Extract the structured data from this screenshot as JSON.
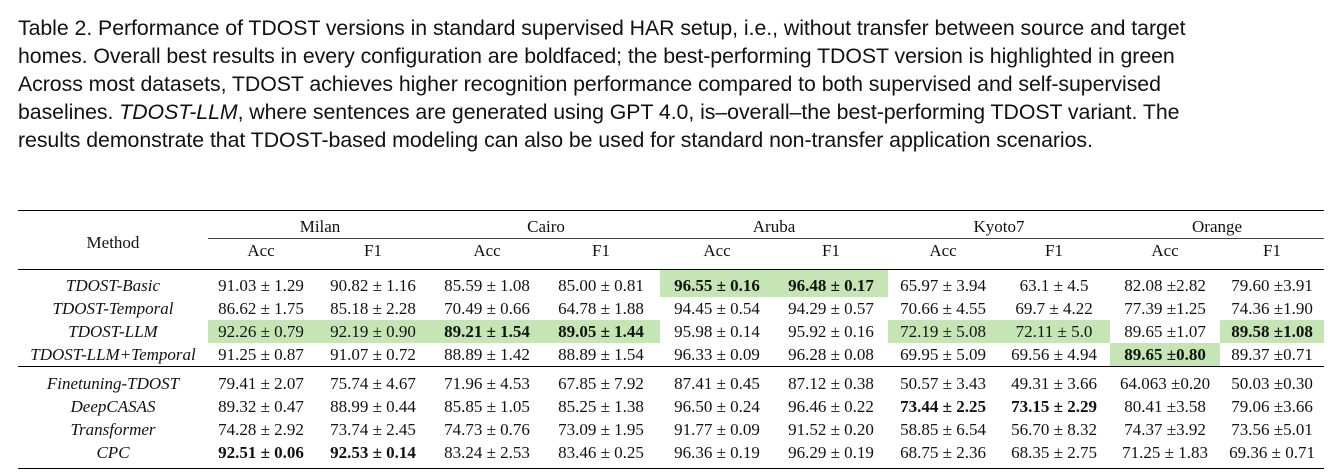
{
  "caption": {
    "line1": "Table 2.  Performance of TDOST versions in standard supervised HAR setup, i.e., without transfer between source and target",
    "line2": "homes. Overall best results in every configuration are boldfaced; the best-performing TDOST version is highlighted in green",
    "line3": "Across most datasets, TDOST achieves higher recognition performance compared to both supervised and self-supervised",
    "line4_pre": "baselines. ",
    "line4_em": "TDOST-LLM",
    "line4_post": ", where sentences are generated using GPT 4.0, is–overall–the best-performing TDOST variant. The",
    "line5": "results demonstrate that TDOST-based modeling can also be used for standard non-transfer application scenarios."
  },
  "colors": {
    "highlight": "#c6e5b4"
  },
  "table": {
    "method_header": "Method",
    "datasets": [
      "Milan",
      "Cairo",
      "Aruba",
      "Kyoto7",
      "Orange"
    ],
    "metrics": [
      "Acc",
      "F1"
    ],
    "rows": [
      {
        "method": "TDOST-Basic",
        "cells": [
          "91.03 ± 1.29",
          "90.82 ± 1.16",
          "85.59 ± 1.08",
          "85.00 ± 0.81",
          "96.55 ± 0.16",
          "96.48 ± 0.17",
          "65.97 ± 3.94",
          "63.1 ± 4.5",
          "82.08 ±2.82",
          "79.60 ±3.91"
        ]
      },
      {
        "method": "TDOST-Temporal",
        "cells": [
          "86.62 ± 1.75",
          "85.18 ± 2.28",
          "70.49 ± 0.66",
          "64.78 ± 1.88",
          "94.45 ± 0.54",
          "94.29 ± 0.57",
          "70.66 ± 4.55",
          "69.7 ± 4.22",
          "77.39 ±1.25",
          "74.36 ±1.90"
        ]
      },
      {
        "method": "TDOST-LLM",
        "cells": [
          "92.26 ± 0.79",
          "92.19 ± 0.90",
          "89.21 ± 1.54",
          "89.05 ± 1.44",
          "95.98 ± 0.14",
          "95.92 ± 0.16",
          "72.19 ± 5.08",
          "72.11 ± 5.0",
          "89.65 ±1.07",
          "89.58 ±1.08"
        ]
      },
      {
        "method": "TDOST-LLM+Temporal",
        "cells": [
          "91.25 ± 0.87",
          "91.07 ± 0.72",
          "88.89 ± 1.42",
          "88.89 ± 1.54",
          "96.33 ± 0.09",
          "96.28 ± 0.08",
          "69.95 ± 5.09",
          "69.56 ± 4.94",
          "89.65 ±0.80",
          "89.37 ±0.71"
        ]
      },
      {
        "method": "Finetuning-TDOST",
        "cells": [
          "79.41 ± 2.07",
          "75.74 ± 4.67",
          "71.96 ± 4.53",
          "67.85 ± 7.92",
          "87.41 ± 0.45",
          "87.12 ± 0.38",
          "50.57 ± 3.43",
          "49.31 ± 3.66",
          "64.063 ±0.20",
          "50.03 ±0.30"
        ]
      },
      {
        "method": "DeepCASAS",
        "cells": [
          "89.32 ± 0.47",
          "88.99 ± 0.44",
          "85.85 ± 1.05",
          "85.25 ± 1.38",
          "96.50 ± 0.24",
          "96.46 ± 0.22",
          "73.44 ± 2.25",
          "73.15 ± 2.29",
          "80.41 ±3.58",
          "79.06 ±3.66"
        ]
      },
      {
        "method": "Transformer",
        "cells": [
          "74.28 ± 2.92",
          "73.74 ± 2.45",
          "74.73 ± 0.76",
          "73.09 ± 1.95",
          "91.77 ± 0.09",
          "91.52 ± 0.20",
          "58.85 ± 6.54",
          "56.70 ± 8.32",
          "74.37 ±3.92",
          "73.56 ±5.01"
        ]
      },
      {
        "method": "CPC",
        "cells": [
          "92.51 ± 0.06",
          "92.53 ± 0.14",
          "83.24 ± 2.53",
          "83.46 ± 0.25",
          "96.36 ± 0.19",
          "96.29 ± 0.19",
          "68.75 ± 2.36",
          "68.35 ± 2.75",
          "71.25 ± 1.83",
          "69.36 ± 0.71"
        ]
      }
    ],
    "bold": [
      [
        0,
        4
      ],
      [
        0,
        5
      ],
      [
        2,
        2
      ],
      [
        2,
        3
      ],
      [
        2,
        9
      ],
      [
        3,
        8
      ],
      [
        5,
        6
      ],
      [
        5,
        7
      ],
      [
        7,
        0
      ],
      [
        7,
        1
      ]
    ],
    "highlight": [
      [
        0,
        4
      ],
      [
        0,
        5
      ],
      [
        2,
        0
      ],
      [
        2,
        1
      ],
      [
        2,
        2
      ],
      [
        2,
        3
      ],
      [
        2,
        6
      ],
      [
        2,
        7
      ],
      [
        2,
        9
      ],
      [
        3,
        8
      ]
    ]
  }
}
